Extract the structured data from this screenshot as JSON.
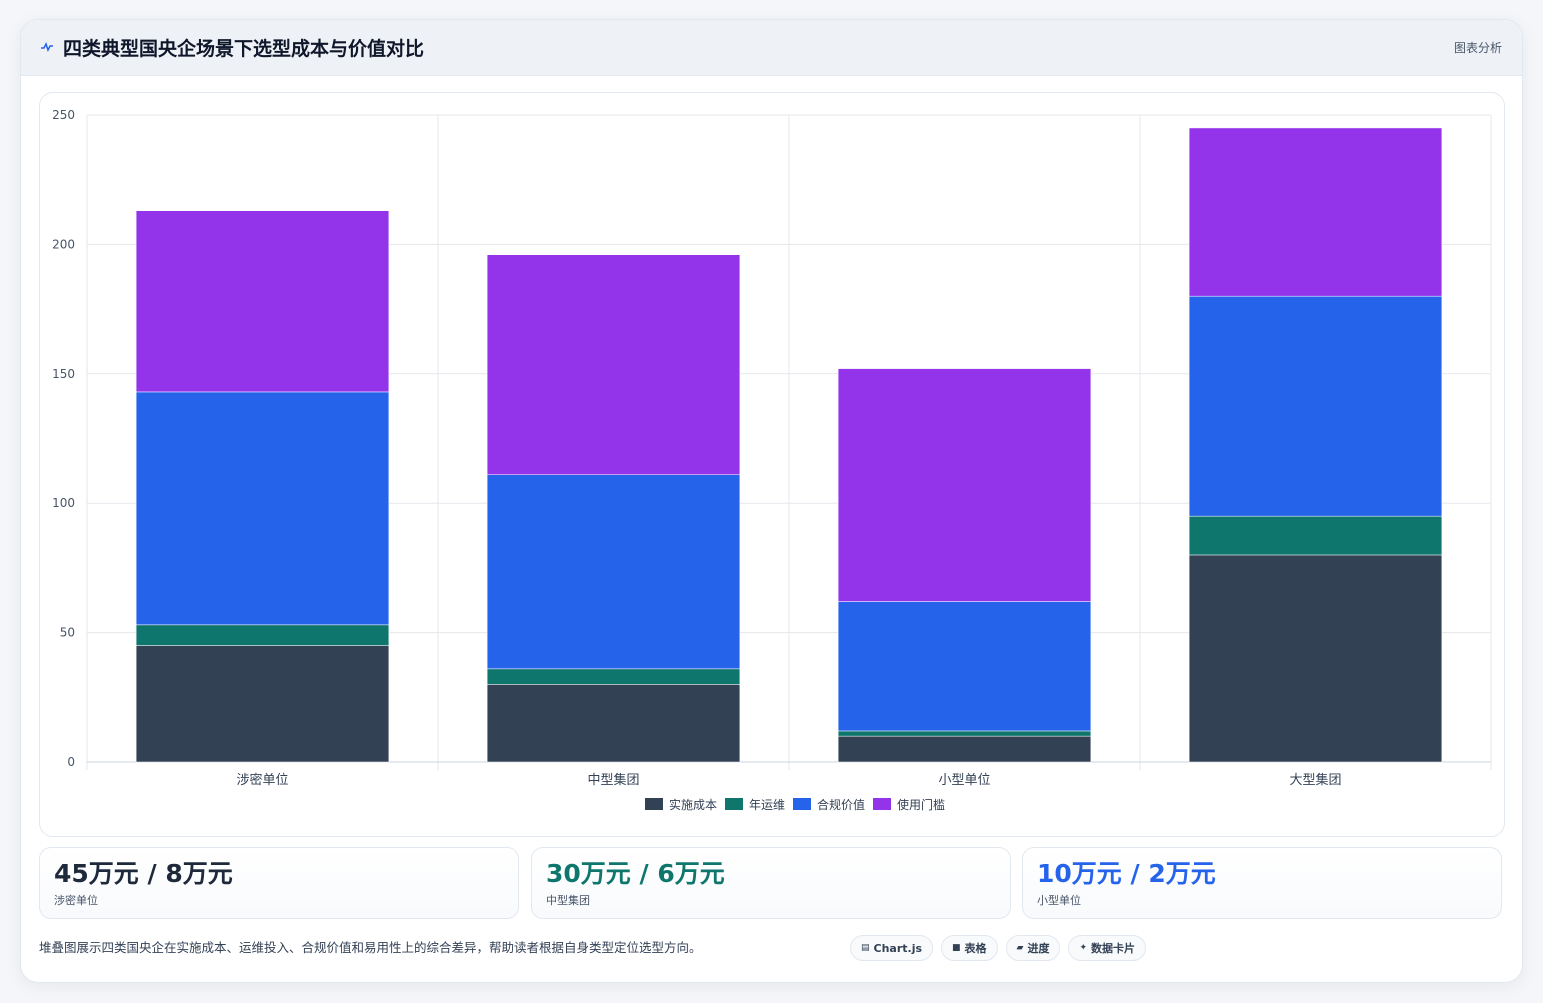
{
  "header": {
    "title": "四类典型国央企场景下选型成本与价值对比",
    "link": "图表分析",
    "icon": "activity-icon"
  },
  "chart_data": {
    "type": "bar",
    "stacked": true,
    "categories": [
      "涉密单位",
      "中型集团",
      "小型单位",
      "大型集团"
    ],
    "series": [
      {
        "name": "实施成本",
        "values": [
          45,
          30,
          10,
          80
        ],
        "color": "#334155"
      },
      {
        "name": "年运维",
        "values": [
          8,
          6,
          2,
          15
        ],
        "color": "#0f766e"
      },
      {
        "name": "合规价值",
        "values": [
          90,
          75,
          50,
          85
        ],
        "color": "#2563eb"
      },
      {
        "name": "使用门槛",
        "values": [
          70,
          85,
          90,
          65
        ],
        "color": "#9333ea"
      }
    ],
    "ylim": [
      0,
      250
    ],
    "yticks": [
      0,
      50,
      100,
      150,
      200,
      250
    ],
    "grid": true,
    "legend": "bottom"
  },
  "stats": [
    {
      "value": "45万元 / 8万元",
      "label": "涉密单位",
      "color": "#1e293b"
    },
    {
      "value": "30万元 / 6万元",
      "label": "中型集团",
      "color": "#0f766e"
    },
    {
      "value": "10万元 / 2万元",
      "label": "小型单位",
      "color": "#2563eb"
    }
  ],
  "footer": {
    "description": "堆叠图展示四类国央企在实施成本、运维投入、合规价值和易用性上的综合差异，帮助读者根据自身类型定位选型方向。",
    "pills": [
      {
        "icon": "▤",
        "label": "Chart.js"
      },
      {
        "icon": "■",
        "label": "表格"
      },
      {
        "icon": "▰",
        "label": "进度"
      },
      {
        "icon": "✦",
        "label": "数据卡片"
      }
    ]
  }
}
